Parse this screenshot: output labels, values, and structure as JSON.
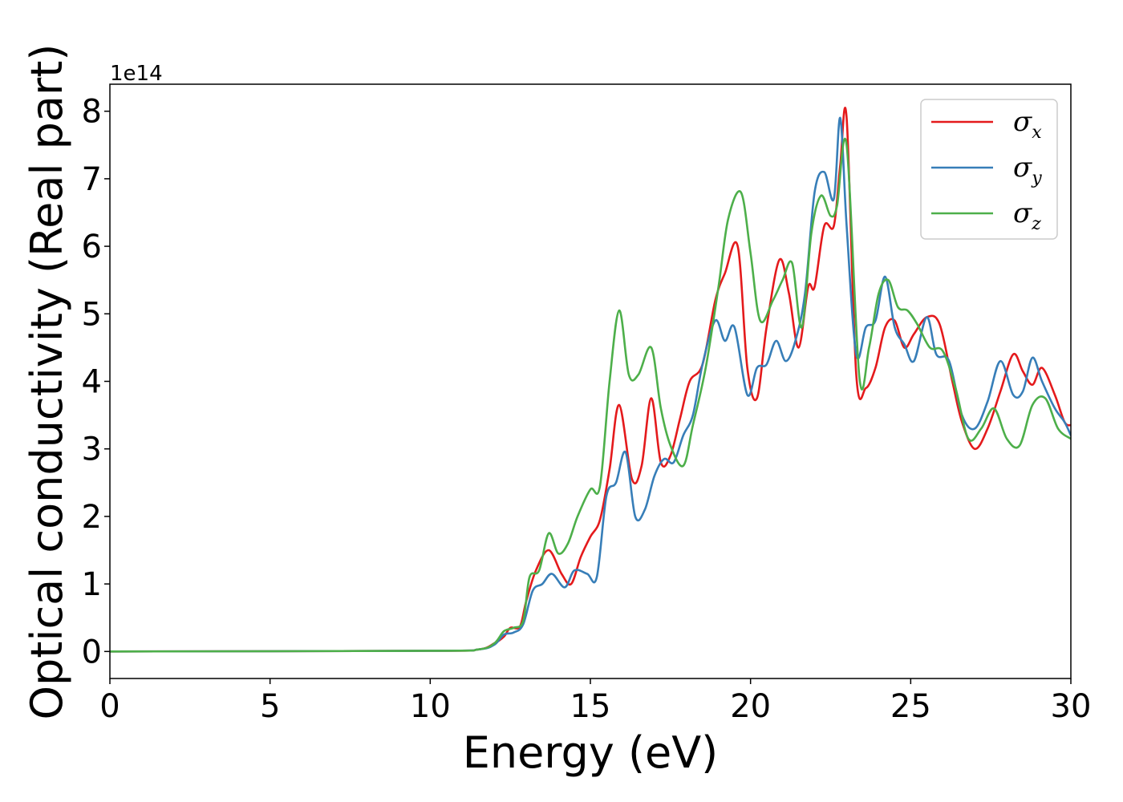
{
  "chart_data": {
    "type": "line",
    "title": "",
    "xlabel": "Energy (eV)",
    "ylabel": "Optical conductivity (Real part)",
    "y_offset_label": "1e14",
    "y_scale": 100000000000000.0,
    "xlim": [
      0,
      30
    ],
    "ylim": [
      -0.4,
      8.4
    ],
    "x_ticks": [
      0,
      5,
      10,
      15,
      20,
      25,
      30
    ],
    "y_ticks": [
      0,
      1,
      2,
      3,
      4,
      5,
      6,
      7,
      8
    ],
    "grid": false,
    "legend_position": "top-right",
    "series": [
      {
        "name": "σx",
        "label_main": "σ",
        "label_sub": "x",
        "color": "#e41a1c",
        "x": [
          0,
          10,
          11.5,
          12.0,
          12.3,
          12.5,
          12.8,
          13.0,
          13.3,
          13.7,
          14.1,
          14.4,
          14.7,
          15.0,
          15.3,
          15.6,
          15.9,
          16.3,
          16.6,
          16.9,
          17.2,
          17.5,
          17.8,
          18.1,
          18.5,
          18.9,
          19.2,
          19.6,
          19.9,
          20.2,
          20.5,
          20.9,
          21.2,
          21.5,
          21.8,
          22.0,
          22.3,
          22.6,
          22.8,
          23.0,
          23.3,
          23.6,
          23.9,
          24.2,
          24.5,
          24.8,
          25.1,
          25.5,
          25.9,
          26.3,
          26.6,
          27.0,
          27.4,
          27.8,
          28.2,
          28.5,
          28.8,
          29.1,
          29.5,
          29.8,
          30
        ],
        "y": [
          0,
          0.01,
          0.03,
          0.12,
          0.22,
          0.35,
          0.37,
          0.75,
          1.2,
          1.5,
          1.15,
          1.0,
          1.4,
          1.7,
          1.95,
          2.7,
          3.65,
          2.55,
          2.75,
          3.75,
          2.8,
          2.9,
          3.45,
          4.0,
          4.25,
          5.2,
          5.6,
          6.0,
          4.2,
          3.75,
          4.8,
          5.8,
          5.3,
          4.5,
          5.4,
          5.4,
          6.3,
          6.3,
          7.2,
          7.9,
          4.1,
          3.9,
          4.2,
          4.8,
          4.9,
          4.5,
          4.7,
          4.95,
          4.85,
          4.0,
          3.4,
          3.0,
          3.3,
          3.85,
          4.4,
          4.15,
          3.95,
          4.2,
          3.8,
          3.4,
          3.35
        ]
      },
      {
        "name": "σy",
        "label_main": "σ",
        "label_sub": "y",
        "color": "#377eb8",
        "x": [
          0,
          10,
          11.5,
          12.0,
          12.3,
          12.6,
          12.9,
          13.2,
          13.5,
          13.8,
          14.2,
          14.5,
          14.9,
          15.2,
          15.5,
          15.8,
          16.1,
          16.4,
          16.7,
          17.0,
          17.3,
          17.6,
          17.9,
          18.2,
          18.5,
          18.9,
          19.2,
          19.5,
          19.9,
          20.2,
          20.5,
          20.8,
          21.1,
          21.4,
          21.7,
          22.0,
          22.3,
          22.6,
          22.8,
          23.0,
          23.3,
          23.6,
          23.9,
          24.2,
          24.5,
          24.8,
          25.1,
          25.5,
          25.8,
          26.2,
          26.6,
          27.0,
          27.4,
          27.8,
          28.2,
          28.5,
          28.8,
          29.1,
          29.5,
          29.8,
          30
        ],
        "y": [
          0,
          0.01,
          0.03,
          0.1,
          0.25,
          0.28,
          0.4,
          0.9,
          1.0,
          1.15,
          0.95,
          1.2,
          1.15,
          1.1,
          2.3,
          2.5,
          2.95,
          2.0,
          2.1,
          2.6,
          2.85,
          2.8,
          3.2,
          3.5,
          4.25,
          4.9,
          4.6,
          4.8,
          3.8,
          4.2,
          4.25,
          4.6,
          4.3,
          4.6,
          5.3,
          6.8,
          7.1,
          6.7,
          7.9,
          6.3,
          4.4,
          4.8,
          4.9,
          5.55,
          4.8,
          4.55,
          4.3,
          4.95,
          4.4,
          4.3,
          3.5,
          3.3,
          3.7,
          4.3,
          3.8,
          3.85,
          4.35,
          4.0,
          3.6,
          3.4,
          3.2
        ]
      },
      {
        "name": "σz",
        "label_main": "σ",
        "label_sub": "z",
        "color": "#4daf4a",
        "x": [
          0,
          10,
          11.5,
          12.0,
          12.3,
          12.6,
          12.9,
          13.1,
          13.4,
          13.7,
          14.0,
          14.3,
          14.6,
          15.0,
          15.3,
          15.6,
          15.9,
          16.2,
          16.5,
          16.9,
          17.2,
          17.5,
          17.9,
          18.2,
          18.6,
          19.0,
          19.3,
          19.7,
          20.0,
          20.3,
          20.7,
          21.0,
          21.3,
          21.6,
          21.9,
          22.2,
          22.5,
          22.7,
          23.0,
          23.4,
          23.7,
          24.0,
          24.3,
          24.6,
          24.9,
          25.2,
          25.6,
          26.0,
          26.4,
          26.8,
          27.2,
          27.6,
          28.0,
          28.4,
          28.8,
          29.2,
          29.6,
          30
        ],
        "y": [
          0,
          0.01,
          0.03,
          0.12,
          0.3,
          0.35,
          0.45,
          1.1,
          1.2,
          1.75,
          1.45,
          1.6,
          2.0,
          2.4,
          2.45,
          4.0,
          5.05,
          4.1,
          4.1,
          4.5,
          3.6,
          3.05,
          2.75,
          3.35,
          4.2,
          5.4,
          6.4,
          6.8,
          5.9,
          4.9,
          5.2,
          5.5,
          5.75,
          4.8,
          6.2,
          6.75,
          6.45,
          6.6,
          7.5,
          4.05,
          4.5,
          5.3,
          5.5,
          5.1,
          5.05,
          4.85,
          4.5,
          4.45,
          3.9,
          3.15,
          3.3,
          3.6,
          3.15,
          3.05,
          3.65,
          3.75,
          3.3,
          3.15
        ]
      }
    ]
  }
}
